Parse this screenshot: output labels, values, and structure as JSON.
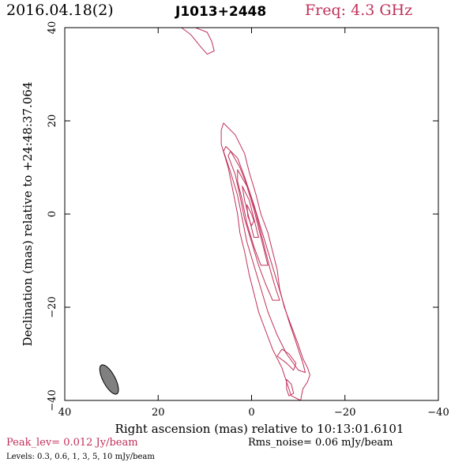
{
  "header": {
    "date": "2016.04.18(2)",
    "source": "J1013+2448",
    "frequency": "Freq: 4.3 GHz"
  },
  "footer": {
    "peak": "Peak_lev=  0.012 Jy/beam",
    "rms": "Rms_noise= 0.06 mJy/beam",
    "levels": "Levels: 0.3, 0.6,   1,   3,   5,  10 mJy/beam"
  },
  "colors": {
    "contour": "#c0305a",
    "beam_fill": "#808080",
    "axes": "#000000"
  },
  "chart_data": {
    "type": "contour",
    "title": "",
    "xlabel": "Right ascension (mas) relative to 10:13:01.6101",
    "ylabel": "Declination (mas) relative to +24:48:37.064",
    "xlim": [
      40,
      -40
    ],
    "ylim": [
      -40,
      40
    ],
    "xticks": [
      40,
      20,
      0,
      -20,
      -40
    ],
    "yticks": [
      -40,
      -20,
      0,
      20,
      40
    ],
    "xtick_labels": [
      "40",
      "20",
      "0",
      "−20",
      "−40"
    ],
    "ytick_labels": [
      "−40",
      "−20",
      "0",
      "20",
      "40"
    ],
    "levels_mJy_per_beam": [
      0.3,
      0.6,
      1,
      3,
      5,
      10
    ],
    "beam": {
      "x": 30.5,
      "y": -35.5,
      "major": 7,
      "minor": 2.6,
      "pa_deg": 28
    },
    "contours": [
      {
        "name": "c1",
        "points": [
          [
            12,
            40
          ],
          [
            9.5,
            39
          ],
          [
            8.5,
            37
          ],
          [
            8,
            35
          ],
          [
            9.5,
            34.3
          ],
          [
            11,
            36
          ],
          [
            13,
            38.5
          ],
          [
            15,
            40
          ]
        ]
      },
      {
        "name": "c2",
        "points": [
          [
            6,
            19.5
          ],
          [
            3.5,
            17
          ],
          [
            1.5,
            13
          ],
          [
            0.5,
            9
          ],
          [
            -1,
            4
          ],
          [
            -2,
            0
          ],
          [
            -3.5,
            -4
          ],
          [
            -4.5,
            -8
          ],
          [
            -5.5,
            -12
          ],
          [
            -6,
            -16
          ],
          [
            -7,
            -20
          ],
          [
            -8.5,
            -24
          ],
          [
            -10,
            -28
          ],
          [
            -11,
            -31
          ],
          [
            -12,
            -33
          ],
          [
            -12.5,
            -34.5
          ],
          [
            -12,
            -36
          ],
          [
            -11,
            -37.5
          ],
          [
            -10.5,
            -40
          ],
          [
            -8.5,
            -39
          ],
          [
            -7.5,
            -36
          ],
          [
            -6.5,
            -33
          ],
          [
            -4.5,
            -29
          ],
          [
            -3,
            -25
          ],
          [
            -1.5,
            -21
          ],
          [
            -0.5,
            -17
          ],
          [
            0.5,
            -13
          ],
          [
            1.5,
            -8
          ],
          [
            2.5,
            -4
          ],
          [
            3,
            0
          ],
          [
            4,
            5
          ],
          [
            5,
            10
          ],
          [
            6.5,
            15
          ],
          [
            6.5,
            18
          ]
        ]
      },
      {
        "name": "c3",
        "points": [
          [
            5.5,
            14.5
          ],
          [
            3,
            12
          ],
          [
            1.5,
            8
          ],
          [
            -0.5,
            2
          ],
          [
            -2,
            -3
          ],
          [
            -3.5,
            -8
          ],
          [
            -5,
            -13
          ],
          [
            -6.5,
            -18
          ],
          [
            -8,
            -23
          ],
          [
            -9.5,
            -27.5
          ],
          [
            -11,
            -32
          ],
          [
            -11.5,
            -34
          ],
          [
            -10,
            -33.5
          ],
          [
            -7.5,
            -30
          ],
          [
            -5.5,
            -26
          ],
          [
            -3.5,
            -21
          ],
          [
            -2,
            -16
          ],
          [
            -0.5,
            -11
          ],
          [
            1,
            -6
          ],
          [
            2,
            -1
          ],
          [
            3,
            4
          ],
          [
            4.5,
            9
          ],
          [
            6,
            13.5
          ]
        ]
      },
      {
        "name": "c4",
        "points": [
          [
            4.5,
            13.5
          ],
          [
            2.5,
            10
          ],
          [
            0.5,
            5
          ],
          [
            -1,
            0
          ],
          [
            -2,
            -4
          ],
          [
            -3,
            -8
          ],
          [
            -4,
            -12
          ],
          [
            -5,
            -15.5
          ],
          [
            -6,
            -18.5
          ],
          [
            -4.5,
            -18.5
          ],
          [
            -3,
            -15
          ],
          [
            -1.5,
            -11
          ],
          [
            0,
            -6
          ],
          [
            1.5,
            -1
          ],
          [
            2.5,
            4
          ],
          [
            3.5,
            8.5
          ],
          [
            5,
            12.5
          ]
        ]
      },
      {
        "name": "c5",
        "points": [
          [
            3,
            9.5
          ],
          [
            1,
            6
          ],
          [
            -0.5,
            1
          ],
          [
            -1.5,
            -3
          ],
          [
            -2.5,
            -7
          ],
          [
            -3.5,
            -11
          ],
          [
            -2,
            -11
          ],
          [
            -0.5,
            -7
          ],
          [
            1,
            -2
          ],
          [
            2,
            3
          ],
          [
            3,
            7
          ]
        ]
      },
      {
        "name": "c6",
        "points": [
          [
            2,
            6
          ],
          [
            0.5,
            3
          ],
          [
            -0.5,
            -1
          ],
          [
            -1.5,
            -5
          ],
          [
            -0.5,
            -5
          ],
          [
            0.5,
            -1
          ],
          [
            1.5,
            3
          ]
        ]
      },
      {
        "name": "c7",
        "points": [
          [
            1,
            2
          ],
          [
            0,
            0
          ],
          [
            -0.5,
            -1.5
          ],
          [
            0,
            -2.5
          ],
          [
            0.8,
            -0.5
          ]
        ]
      },
      {
        "name": "c8",
        "points": [
          [
            -5.5,
            -30.5
          ],
          [
            -7.5,
            -32
          ],
          [
            -9,
            -33.5
          ],
          [
            -9.5,
            -32
          ],
          [
            -8,
            -30
          ],
          [
            -6.5,
            -29
          ]
        ]
      },
      {
        "name": "c9",
        "points": [
          [
            -7.5,
            -35.5
          ],
          [
            -8.5,
            -36.5
          ],
          [
            -9,
            -38.5
          ],
          [
            -8,
            -39
          ],
          [
            -7.5,
            -37.5
          ]
        ]
      }
    ]
  }
}
